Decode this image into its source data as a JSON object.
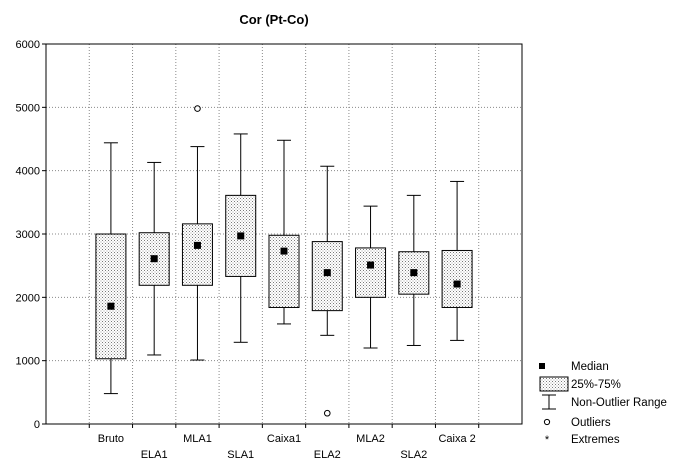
{
  "chart_data": {
    "type": "boxplot",
    "title": "Cor (Pt-Co)",
    "ylim": [
      0,
      6000
    ],
    "yticks": [
      0,
      1000,
      2000,
      3000,
      4000,
      5000,
      6000
    ],
    "grid": true,
    "legend_position": "bottom-right",
    "categories": [
      "Bruto",
      "ELA1",
      "MLA1",
      "SLA1",
      "Caixa1",
      "ELA2",
      "MLA2",
      "SLA2",
      "Caixa 2"
    ],
    "boxes": [
      {
        "category": "Bruto",
        "min": 480,
        "q1": 1030,
        "median": 1860,
        "q3": 3000,
        "max": 4440,
        "outliers": []
      },
      {
        "category": "ELA1",
        "min": 1090,
        "q1": 2190,
        "median": 2610,
        "q3": 3020,
        "max": 4130,
        "outliers": []
      },
      {
        "category": "MLA1",
        "min": 1010,
        "q1": 2190,
        "median": 2820,
        "q3": 3160,
        "max": 4380,
        "outliers": [
          4980
        ]
      },
      {
        "category": "SLA1",
        "min": 1290,
        "q1": 2330,
        "median": 2970,
        "q3": 3610,
        "max": 4580,
        "outliers": []
      },
      {
        "category": "Caixa1",
        "min": 1580,
        "q1": 1840,
        "median": 2730,
        "q3": 2980,
        "max": 4480,
        "outliers": []
      },
      {
        "category": "ELA2",
        "min": 1400,
        "q1": 1790,
        "median": 2390,
        "q3": 2880,
        "max": 4070,
        "outliers": [
          170
        ]
      },
      {
        "category": "MLA2",
        "min": 1200,
        "q1": 2000,
        "median": 2510,
        "q3": 2780,
        "max": 3440,
        "outliers": []
      },
      {
        "category": "SLA2",
        "min": 1240,
        "q1": 2050,
        "median": 2390,
        "q3": 2720,
        "max": 3610,
        "outliers": []
      },
      {
        "category": "Caixa 2",
        "min": 1320,
        "q1": 1840,
        "median": 2210,
        "q3": 2740,
        "max": 3830,
        "outliers": []
      }
    ],
    "legend": {
      "median": "Median",
      "box": "25%-75%",
      "range": "Non-Outlier Range",
      "outliers": "Outliers",
      "extremes": "Extremes"
    }
  }
}
